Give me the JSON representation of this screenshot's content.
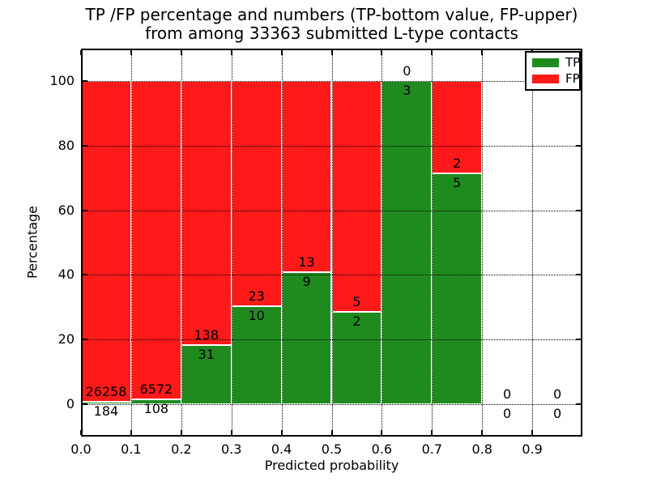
{
  "title": {
    "line1": "TP /FP percentage and numbers (TP-bottom value, FP-upper)",
    "line2": "from among 33363 submitted L-type contacts"
  },
  "axes": {
    "xlabel": "Predicted probability",
    "ylabel": "Percentage",
    "x_tick_labels": [
      "0.0",
      "0.1",
      "0.2",
      "0.3",
      "0.4",
      "0.5",
      "0.6",
      "0.7",
      "0.8",
      "0.9"
    ],
    "y_tick_labels": [
      "0",
      "20",
      "40",
      "60",
      "80",
      "100"
    ]
  },
  "legend": {
    "items": [
      {
        "label": "TP",
        "color": "#1f8b1f"
      },
      {
        "label": "FP",
        "color": "#ff1a1a"
      }
    ]
  },
  "chart_data": {
    "type": "bar",
    "stacked": true,
    "normalized_to_percent": 100,
    "title": "TP /FP percentage and numbers (TP-bottom value, FP-upper) from among 33363 submitted L-type contacts",
    "xlabel": "Predicted probability",
    "ylabel": "Percentage",
    "xlim": [
      0.0,
      1.0
    ],
    "ylim": [
      -10,
      110
    ],
    "x_ticks": [
      0.0,
      0.1,
      0.2,
      0.3,
      0.4,
      0.5,
      0.6,
      0.7,
      0.8,
      0.9
    ],
    "y_ticks": [
      0,
      20,
      40,
      60,
      80,
      100
    ],
    "grid": true,
    "grid_style": "dotted",
    "legend_position": "upper right",
    "total_contacts": 33363,
    "series": [
      {
        "name": "TP",
        "color": "#1f8b1f",
        "position": "bottom"
      },
      {
        "name": "FP",
        "color": "#ff1a1a",
        "position": "top"
      }
    ],
    "bins": [
      {
        "range": [
          0.0,
          0.1
        ],
        "tp": 184,
        "fp": 26258
      },
      {
        "range": [
          0.1,
          0.2
        ],
        "tp": 108,
        "fp": 6572
      },
      {
        "range": [
          0.2,
          0.3
        ],
        "tp": 31,
        "fp": 138
      },
      {
        "range": [
          0.3,
          0.4
        ],
        "tp": 10,
        "fp": 23
      },
      {
        "range": [
          0.4,
          0.5
        ],
        "tp": 9,
        "fp": 13
      },
      {
        "range": [
          0.5,
          0.6
        ],
        "tp": 2,
        "fp": 5
      },
      {
        "range": [
          0.6,
          0.7
        ],
        "tp": 3,
        "fp": 0
      },
      {
        "range": [
          0.7,
          0.8
        ],
        "tp": 5,
        "fp": 2
      },
      {
        "range": [
          0.8,
          0.9
        ],
        "tp": 0,
        "fp": 0
      },
      {
        "range": [
          0.9,
          1.0
        ],
        "tp": 0,
        "fp": 0
      }
    ]
  }
}
